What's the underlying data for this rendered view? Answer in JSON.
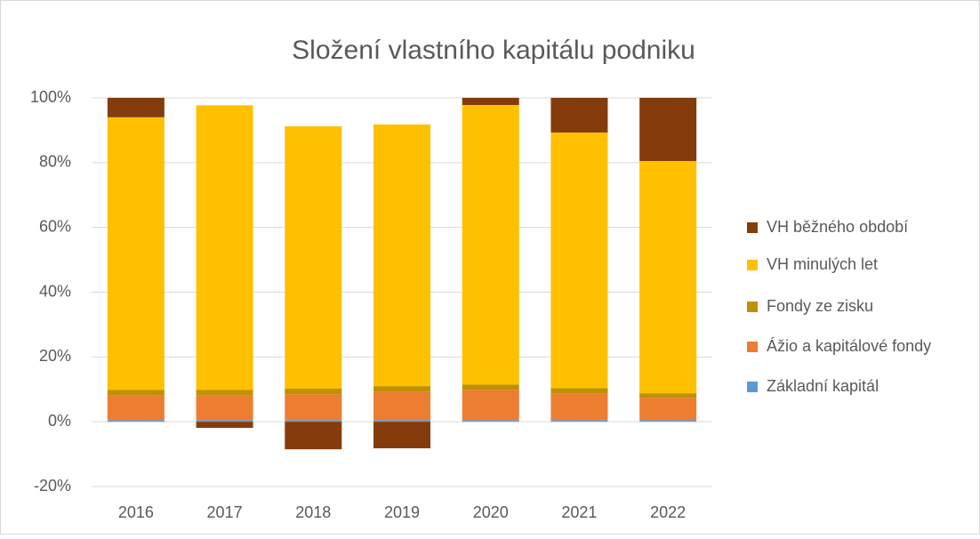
{
  "chart_data": {
    "type": "stacked-bar",
    "title": "Složení vlastního kapitálu podniku",
    "categories": [
      "2016",
      "2017",
      "2018",
      "2019",
      "2020",
      "2021",
      "2022"
    ],
    "series": [
      {
        "name": "Základní kapitál",
        "color": "#5b9bd5",
        "values": [
          0.5,
          0.5,
          0.5,
          0.5,
          0.5,
          0.5,
          0.5
        ]
      },
      {
        "name": "Ážio a kapitálové fondy",
        "color": "#ed7d31",
        "values": [
          7.7,
          7.7,
          8.0,
          8.8,
          9.4,
          8.3,
          6.9
        ]
      },
      {
        "name": "Fondy ze zisku",
        "color": "#bf9000",
        "values": [
          1.6,
          1.6,
          1.7,
          1.7,
          1.6,
          1.6,
          1.4
        ]
      },
      {
        "name": "VH minulých let",
        "color": "#ffc000",
        "values": [
          84.2,
          87.9,
          81.0,
          80.8,
          86.3,
          78.9,
          71.7
        ]
      },
      {
        "name": "VH běžného období",
        "color": "#843c0c",
        "values": [
          6.0,
          -1.9,
          -8.5,
          -8.2,
          2.2,
          10.7,
          19.5
        ]
      }
    ],
    "ylim": [
      -20,
      100
    ],
    "yticks": [
      {
        "value": -20,
        "label": "-20%"
      },
      {
        "value": 0,
        "label": "0%"
      },
      {
        "value": 20,
        "label": "20%"
      },
      {
        "value": 40,
        "label": "40%"
      },
      {
        "value": 60,
        "label": "60%"
      },
      {
        "value": 80,
        "label": "80%"
      },
      {
        "value": 100,
        "label": "100%"
      }
    ],
    "grid": true,
    "legend": "right"
  }
}
